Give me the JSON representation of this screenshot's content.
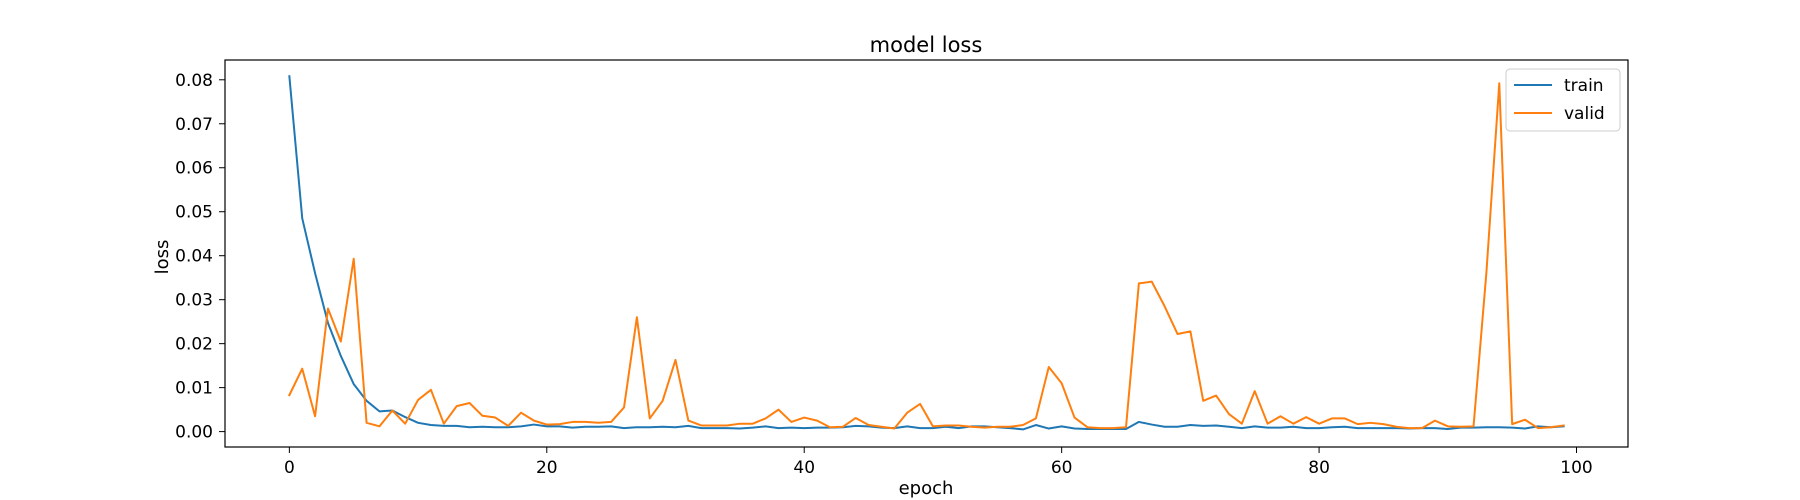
{
  "chart_data": {
    "type": "line",
    "title": "model loss",
    "xlabel": "epoch",
    "ylabel": "loss",
    "xlim": [
      -5,
      104
    ],
    "ylim": [
      -0.0035,
      0.0845
    ],
    "xticks": [
      0,
      20,
      40,
      60,
      80,
      100
    ],
    "xtick_labels": [
      "0",
      "20",
      "40",
      "60",
      "80",
      "100"
    ],
    "yticks": [
      0.0,
      0.01,
      0.02,
      0.03,
      0.04,
      0.05,
      0.06,
      0.07,
      0.08
    ],
    "ytick_labels": [
      "0.00",
      "0.01",
      "0.02",
      "0.03",
      "0.04",
      "0.05",
      "0.06",
      "0.07",
      "0.08"
    ],
    "grid": false,
    "legend": "top-right",
    "series": [
      {
        "name": "train",
        "color": "#1f77b4",
        "values": [
          0.0808,
          0.0485,
          0.036,
          0.0247,
          0.0172,
          0.0108,
          0.007,
          0.0046,
          0.0048,
          0.0033,
          0.002,
          0.0015,
          0.0013,
          0.0013,
          0.001,
          0.0011,
          0.001,
          0.001,
          0.0012,
          0.0016,
          0.0012,
          0.0012,
          0.0009,
          0.0011,
          0.0011,
          0.0012,
          0.0008,
          0.001,
          0.001,
          0.0011,
          0.001,
          0.0013,
          0.0008,
          0.0008,
          0.0008,
          0.0007,
          0.0009,
          0.0012,
          0.0008,
          0.0009,
          0.0008,
          0.0009,
          0.0009,
          0.001,
          0.0013,
          0.0012,
          0.0009,
          0.0008,
          0.0012,
          0.0008,
          0.0008,
          0.0011,
          0.0008,
          0.0012,
          0.0012,
          0.001,
          0.0008,
          0.0005,
          0.0015,
          0.0007,
          0.0012,
          0.0007,
          0.0006,
          0.0006,
          0.0006,
          0.0006,
          0.0022,
          0.0016,
          0.0011,
          0.0011,
          0.0015,
          0.0013,
          0.0014,
          0.0011,
          0.0008,
          0.0012,
          0.0009,
          0.0009,
          0.0011,
          0.0008,
          0.0008,
          0.001,
          0.0011,
          0.0008,
          0.0008,
          0.0008,
          0.0008,
          0.0007,
          0.0008,
          0.0008,
          0.0006,
          0.0009,
          0.0009,
          0.001,
          0.001,
          0.0009,
          0.0007,
          0.0012,
          0.001,
          0.0012
        ]
      },
      {
        "name": "valid",
        "color": "#ff7f0e",
        "values": [
          0.0083,
          0.0143,
          0.0035,
          0.028,
          0.0205,
          0.0393,
          0.002,
          0.0012,
          0.0048,
          0.0018,
          0.0072,
          0.0095,
          0.0018,
          0.0058,
          0.0065,
          0.0036,
          0.0032,
          0.0013,
          0.0043,
          0.0025,
          0.0016,
          0.0017,
          0.0022,
          0.0022,
          0.002,
          0.0022,
          0.0055,
          0.026,
          0.003,
          0.007,
          0.0163,
          0.0025,
          0.0014,
          0.0014,
          0.0014,
          0.0018,
          0.0018,
          0.003,
          0.005,
          0.0022,
          0.0032,
          0.0025,
          0.001,
          0.0011,
          0.0031,
          0.0015,
          0.0011,
          0.0007,
          0.0043,
          0.0063,
          0.0012,
          0.0014,
          0.0014,
          0.0011,
          0.0009,
          0.0011,
          0.0011,
          0.0015,
          0.003,
          0.0147,
          0.011,
          0.0032,
          0.001,
          0.0008,
          0.0008,
          0.001,
          0.0337,
          0.0341,
          0.0285,
          0.0222,
          0.0228,
          0.007,
          0.0082,
          0.004,
          0.0018,
          0.0092,
          0.0018,
          0.0035,
          0.0018,
          0.0033,
          0.0018,
          0.003,
          0.003,
          0.0017,
          0.002,
          0.0017,
          0.0011,
          0.0008,
          0.0008,
          0.0025,
          0.0012,
          0.0011,
          0.0012,
          0.0362,
          0.0792,
          0.0017,
          0.0027,
          0.0008,
          0.001,
          0.0014
        ]
      }
    ]
  }
}
